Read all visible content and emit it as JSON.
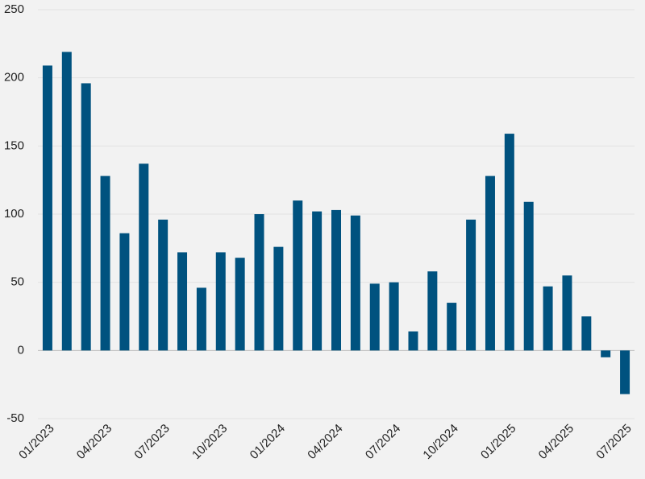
{
  "chart_data": {
    "type": "bar",
    "categories": [
      "01/2023",
      null,
      null,
      "04/2023",
      null,
      null,
      "07/2023",
      null,
      null,
      "10/2023",
      null,
      null,
      "01/2024",
      null,
      null,
      "04/2024",
      null,
      null,
      "07/2024",
      null,
      null,
      "10/2024",
      null,
      null,
      "01/2025",
      null,
      null,
      "04/2025",
      null,
      null,
      "07/2025"
    ],
    "values": [
      209,
      219,
      196,
      128,
      86,
      137,
      96,
      72,
      46,
      72,
      68,
      100,
      76,
      110,
      102,
      103,
      99,
      49,
      50,
      14,
      58,
      35,
      96,
      128,
      159,
      109,
      47,
      55,
      25,
      -5,
      -32
    ],
    "color": "#00527f",
    "ylim": [
      -50,
      250
    ],
    "yticks": [
      -50,
      0,
      50,
      100,
      150,
      200,
      250
    ],
    "grid": true
  }
}
